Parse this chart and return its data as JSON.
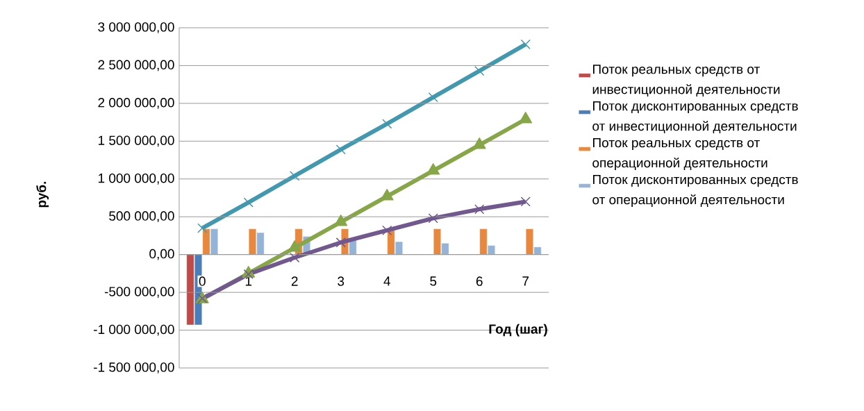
{
  "chart_data": {
    "type": "bar",
    "xlabel": "Год (шаг)",
    "ylabel": "руб.",
    "categories": [
      "0",
      "1",
      "2",
      "3",
      "4",
      "5",
      "6",
      "7"
    ],
    "series": [
      {
        "name": "Поток реальных средств от инвестиционной деятельности",
        "color": "#be4b48",
        "values": [
          -930000,
          null,
          null,
          null,
          null,
          null,
          null,
          null
        ]
      },
      {
        "name": "Поток дисконтированных средств от инвестиционной деятельности",
        "color": "#4a7ebb",
        "values": [
          -930000,
          null,
          null,
          null,
          null,
          null,
          null,
          null
        ]
      },
      {
        "name": "Поток реальных средств от операционной деятельности",
        "color": "#e8873e",
        "values": [
          340000,
          340000,
          340000,
          340000,
          340000,
          340000,
          340000,
          340000
        ]
      },
      {
        "name": "Поток дисконтированных средств от операционной деятельности",
        "color": "#95b3d7",
        "values": [
          340000,
          290000,
          240000,
          200000,
          170000,
          150000,
          120000,
          100000
        ]
      },
      {
        "type": "line",
        "marker": "cross",
        "color": "#4198af",
        "values": [
          350000,
          690000,
          1040000,
          1390000,
          1730000,
          2080000,
          2430000,
          2780000
        ]
      },
      {
        "type": "line",
        "marker": "triangle",
        "color": "#86a648",
        "values": [
          -590000,
          -250000,
          90000,
          430000,
          770000,
          1110000,
          1450000,
          1790000
        ]
      },
      {
        "type": "line",
        "marker": "cross",
        "color": "#71588f",
        "values": [
          -580000,
          -260000,
          -40000,
          160000,
          320000,
          480000,
          600000,
          700000
        ]
      }
    ],
    "ylim": [
      -1500000,
      3000000
    ],
    "yticks": [
      {
        "value": -1500000,
        "label": "-1 500 000,00"
      },
      {
        "value": -1000000,
        "label": "-1 000 000,00"
      },
      {
        "value": -500000,
        "label": "-500 000,00"
      },
      {
        "value": 0,
        "label": "0,00"
      },
      {
        "value": 500000,
        "label": "500 000,00"
      },
      {
        "value": 1000000,
        "label": "1 000 000,00"
      },
      {
        "value": 1500000,
        "label": "1 500 000,00"
      },
      {
        "value": 2000000,
        "label": "2 000 000,00"
      },
      {
        "value": 2500000,
        "label": "2 500 000,00"
      },
      {
        "value": 3000000,
        "label": "3 000 000,00"
      }
    ],
    "grid": "y",
    "legend": "right",
    "line_style": "solid"
  }
}
